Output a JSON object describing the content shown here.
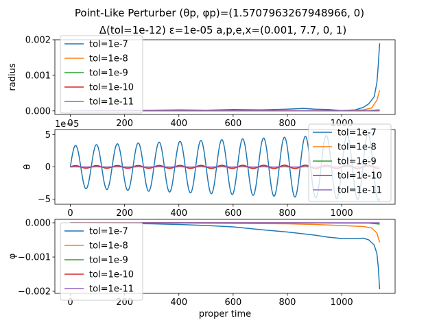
{
  "figure": {
    "title_line1": "Point-Like Perturber (θp, φp)=(1.5707963267948966, 0)",
    "title_line2": "Δ(tol=1e-12) ε=1e-05 a,p,e,x=(0.001, 7.7, 0, 1)"
  },
  "colors": {
    "tol=1e-7": "#1f77b4",
    "tol=1e-8": "#ff7f0e",
    "tol=1e-9": "#2ca02c",
    "tol=1e-10": "#d62728",
    "tol=1e-11": "#9467bd"
  },
  "chart_data": [
    {
      "type": "line",
      "ylabel": "radius",
      "xlabel": "",
      "xlim": [
        -57,
        1197
      ],
      "ylim": [
        -0.0001,
        0.002
      ],
      "xticks": [
        0,
        200,
        400,
        600,
        800,
        1000
      ],
      "yticks": [
        0.0,
        0.001,
        0.002
      ],
      "ytick_labels": [
        "0.000",
        "0.001",
        "0.002"
      ],
      "legend_position": "upper left",
      "series": [
        {
          "name": "tol=1e-7",
          "x": [
            0,
            100,
            200,
            300,
            400,
            500,
            600,
            700,
            800,
            860,
            900,
            950,
            1000,
            1050,
            1080,
            1100,
            1120,
            1130,
            1135,
            1140
          ],
          "y": [
            0,
            1e-05,
            2e-05,
            2e-05,
            3e-05,
            2e-05,
            4e-05,
            3e-05,
            5e-05,
            7e-05,
            5e-05,
            4e-05,
            1e-05,
            3e-05,
            0.0001,
            0.0002,
            0.0004,
            0.0008,
            0.0013,
            0.0019
          ]
        },
        {
          "name": "tol=1e-8",
          "x": [
            0,
            200,
            400,
            600,
            800,
            1000,
            1080,
            1110,
            1130,
            1140
          ],
          "y": [
            0,
            1e-05,
            1e-05,
            1e-05,
            1e-05,
            1e-05,
            3e-05,
            8e-05,
            0.0003,
            0.00058
          ]
        },
        {
          "name": "tol=1e-9",
          "x": [
            0,
            400,
            800,
            1100,
            1140
          ],
          "y": [
            0,
            0,
            0,
            1e-05,
            3e-05
          ]
        },
        {
          "name": "tol=1e-10",
          "x": [
            0,
            400,
            800,
            1100,
            1140
          ],
          "y": [
            0,
            0,
            0,
            0,
            1e-05
          ]
        },
        {
          "name": "tol=1e-11",
          "x": [
            0,
            400,
            800,
            1100,
            1140
          ],
          "y": [
            0,
            0,
            0,
            0,
            0
          ]
        }
      ]
    },
    {
      "type": "line",
      "ylabel": "θ",
      "xlabel": "",
      "offset_text": "1e−5",
      "xlim": [
        -57,
        1197
      ],
      "ylim": [
        -5.8,
        5.8
      ],
      "xticks": [
        0,
        200,
        400,
        600,
        800,
        1000
      ],
      "yticks": [
        -5,
        0,
        5
      ],
      "ytick_labels": [
        "−5",
        "0",
        "5"
      ],
      "legend_position": "upper right",
      "series": [
        {
          "name": "tol=1e-7",
          "sine": {
            "period": 77,
            "amp_start": 3.3,
            "amp_end": 5.2,
            "x_end": 1140
          }
        },
        {
          "name": "tol=1e-8",
          "sine": {
            "period": 77,
            "amp_start": 0.1,
            "amp_end": 0.25,
            "x_end": 1140
          }
        },
        {
          "name": "tol=1e-9",
          "sine": {
            "period": 77,
            "amp_start": 0.02,
            "amp_end": 0.03,
            "x_end": 1140
          }
        },
        {
          "name": "tol=1e-10",
          "sine": {
            "period": 77,
            "amp_start": 0.2,
            "amp_end": 0.3,
            "x_end": 1140
          }
        },
        {
          "name": "tol=1e-11",
          "sine": {
            "period": 77,
            "amp_start": 0.01,
            "amp_end": 0.01,
            "x_end": 1140
          }
        }
      ]
    },
    {
      "type": "line",
      "ylabel": "φ",
      "xlabel": "proper time",
      "xlim": [
        -57,
        1197
      ],
      "ylim": [
        -0.00206,
        0.0001
      ],
      "xticks": [
        0,
        200,
        400,
        600,
        800,
        1000
      ],
      "yticks": [
        0.0,
        -0.001,
        -0.002
      ],
      "ytick_labels": [
        "0.000",
        "−0.001",
        "−0.002"
      ],
      "legend_position": "upper left",
      "series": [
        {
          "name": "tol=1e-7",
          "x": [
            0,
            100,
            200,
            300,
            400,
            500,
            600,
            650,
            700,
            800,
            900,
            950,
            1000,
            1050,
            1080,
            1100,
            1120,
            1130,
            1135,
            1140
          ],
          "y": [
            0,
            -1e-05,
            -2e-05,
            -3e-05,
            -5e-05,
            -8e-05,
            -0.00012,
            -0.00016,
            -0.0002,
            -0.00027,
            -0.00036,
            -0.00042,
            -0.00046,
            -0.00046,
            -0.00045,
            -0.0005,
            -0.00065,
            -0.0009,
            -0.0013,
            -0.00194
          ]
        },
        {
          "name": "tol=1e-8",
          "x": [
            0,
            200,
            400,
            600,
            800,
            900,
            1000,
            1080,
            1110,
            1130,
            1140
          ],
          "y": [
            0,
            -3e-06,
            -1e-05,
            -2e-05,
            -3e-05,
            -5e-05,
            -8e-05,
            -0.00011,
            -0.00015,
            -0.0003,
            -0.00057
          ]
        },
        {
          "name": "tol=1e-9",
          "x": [
            0,
            400,
            800,
            1100,
            1140
          ],
          "y": [
            0,
            0,
            -5e-06,
            -1e-05,
            -4e-05
          ]
        },
        {
          "name": "tol=1e-10",
          "x": [
            0,
            400,
            800,
            1100,
            1140
          ],
          "y": [
            0,
            0,
            0,
            -5e-06,
            -1e-05
          ]
        },
        {
          "name": "tol=1e-11",
          "x": [
            0,
            400,
            800,
            1100,
            1140
          ],
          "y": [
            0,
            0,
            0,
            0,
            0
          ]
        }
      ]
    }
  ]
}
